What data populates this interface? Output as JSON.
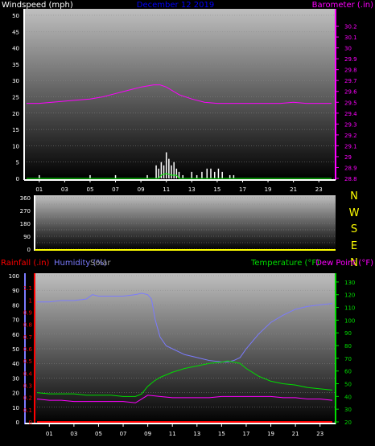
{
  "chart_data": [
    {
      "type": "line",
      "title": "December 12 2019",
      "ylabel": "Windspeed (mph)",
      "y2label": "Barometer (.in)",
      "ylim": [
        0,
        50
      ],
      "y2lim": [
        28.8,
        30.3
      ],
      "yticks": [
        0,
        5,
        10,
        15,
        20,
        25,
        30,
        35,
        40,
        45,
        50
      ],
      "y2ticks": [
        28.8,
        28.9,
        29,
        29.1,
        29.2,
        29.3,
        29.4,
        29.5,
        29.6,
        29.7,
        29.8,
        29.9,
        30,
        30.1,
        30.2
      ],
      "xticks": [
        "01",
        "03",
        "05",
        "07",
        "09",
        "11",
        "13",
        "15",
        "17",
        "19",
        "21",
        "23"
      ],
      "colors": {
        "windspeed": "#ffffff",
        "gust": "#00ff00",
        "barometer": "#ff00ff",
        "title": "#0000ff",
        "axis_left": "#ffffff",
        "axis_right": "#ff00ff"
      },
      "series": [
        {
          "name": "Barometer (.in)",
          "axis": "right",
          "x": [
            0,
            1,
            2,
            3,
            4,
            5,
            6,
            7,
            8,
            9,
            10,
            10.5,
            11,
            12,
            13,
            14,
            15,
            16,
            17,
            18,
            19,
            20,
            21,
            22,
            23,
            24
          ],
          "values": [
            29.49,
            29.49,
            29.5,
            29.51,
            29.52,
            29.53,
            29.55,
            29.58,
            29.61,
            29.64,
            29.66,
            29.66,
            29.64,
            29.57,
            29.53,
            29.5,
            29.49,
            29.49,
            29.49,
            29.49,
            29.49,
            29.49,
            29.5,
            29.49,
            29.49,
            29.49
          ]
        },
        {
          "name": "Windspeed (mph)",
          "axis": "left",
          "x": [
            1,
            5,
            7,
            9.5,
            10.2,
            10.4,
            10.6,
            10.8,
            11,
            11.2,
            11.4,
            11.6,
            11.8,
            12,
            12.3,
            13,
            13.4,
            13.8,
            14.2,
            14.5,
            14.8,
            15.1,
            15.4,
            16,
            16.3
          ],
          "values": [
            1,
            1,
            1,
            1,
            4,
            3,
            5,
            4,
            8,
            6,
            4,
            5,
            3,
            2,
            1,
            2,
            1,
            2,
            3,
            3,
            2,
            3,
            2,
            1,
            1
          ]
        }
      ]
    },
    {
      "type": "scatter",
      "ylabel": "",
      "ylim": [
        0,
        360
      ],
      "yticks": [
        0,
        90,
        180,
        270,
        360
      ],
      "compass": [
        "N",
        "W",
        "S",
        "E",
        "N"
      ],
      "xlim": [
        0,
        24
      ],
      "series": []
    },
    {
      "type": "line",
      "labels": {
        "rainfall": "Rainfall (.in)",
        "humidity": "Humidity (%)",
        "solar": "Solar",
        "temperature": "Temperature (°F)",
        "dewpoint": "Dew Point (°F)"
      },
      "ylim_rain": [
        0,
        1.2
      ],
      "yticks_rain": [
        0,
        0.1,
        0.2,
        0.3,
        0.4,
        0.5,
        0.6,
        0.7,
        0.8,
        0.9,
        1,
        1.1
      ],
      "ylim_hum": [
        0,
        100
      ],
      "yticks_hum": [
        0,
        10,
        20,
        30,
        40,
        50,
        60,
        70,
        80,
        90,
        100
      ],
      "ylim_temp": [
        20,
        135
      ],
      "yticks_temp": [
        20,
        30,
        40,
        50,
        60,
        70,
        80,
        90,
        100,
        110,
        120,
        130
      ],
      "xticks": [
        "01",
        "03",
        "05",
        "07",
        "09",
        "11",
        "13",
        "15",
        "17",
        "19",
        "21",
        "23"
      ],
      "colors": {
        "rainfall": "#ff0000",
        "humidity": "#7b7bff",
        "solar": "#999999",
        "temperature": "#00dd00",
        "dewpoint": "#ff00ff"
      },
      "series": [
        {
          "name": "Humidity (%)",
          "axis": "hum",
          "x": [
            0,
            1,
            2,
            3,
            4,
            4.5,
            5,
            6,
            7,
            8,
            8.5,
            9,
            9.3,
            9.6,
            10,
            10.5,
            11,
            12,
            13,
            14,
            15,
            15.5,
            16,
            16.5,
            17,
            18,
            19,
            20,
            21,
            22,
            23,
            24
          ],
          "values": [
            82,
            82,
            83,
            83,
            84,
            87,
            86,
            86,
            86,
            87,
            88,
            87,
            84,
            70,
            58,
            52,
            50,
            46,
            44,
            42,
            41,
            41,
            42,
            44,
            50,
            60,
            68,
            73,
            77,
            79,
            80,
            81
          ]
        },
        {
          "name": "Temperature (°F)",
          "axis": "temp",
          "x": [
            0,
            1,
            2,
            3,
            4,
            5,
            6,
            7,
            8,
            8.5,
            9,
            9.5,
            10,
            11,
            12,
            13,
            14,
            15,
            15.5,
            16,
            16.5,
            17,
            18,
            19,
            20,
            21,
            22,
            23,
            24
          ],
          "values": [
            43,
            42,
            42,
            42,
            41,
            41,
            41,
            40,
            40,
            42,
            48,
            52,
            55,
            59,
            62,
            64,
            66,
            67,
            68,
            67,
            66,
            62,
            56,
            52,
            50,
            49,
            47,
            46,
            45
          ]
        },
        {
          "name": "Dew Point (°F)",
          "axis": "temp",
          "x": [
            0,
            1,
            2,
            3,
            4,
            5,
            6,
            7,
            8,
            8.5,
            9,
            10,
            11,
            12,
            13,
            14,
            15,
            16,
            17,
            18,
            19,
            20,
            21,
            22,
            23,
            24
          ],
          "values": [
            38,
            37,
            37,
            36,
            36,
            36,
            36,
            36,
            35,
            38,
            41,
            40,
            39,
            39,
            39,
            39,
            40,
            40,
            40,
            40,
            40,
            39,
            39,
            38,
            38,
            37
          ]
        },
        {
          "name": "Rainfall (.in)",
          "axis": "rain",
          "x": [
            0,
            24
          ],
          "values": [
            0,
            0
          ]
        }
      ]
    }
  ]
}
